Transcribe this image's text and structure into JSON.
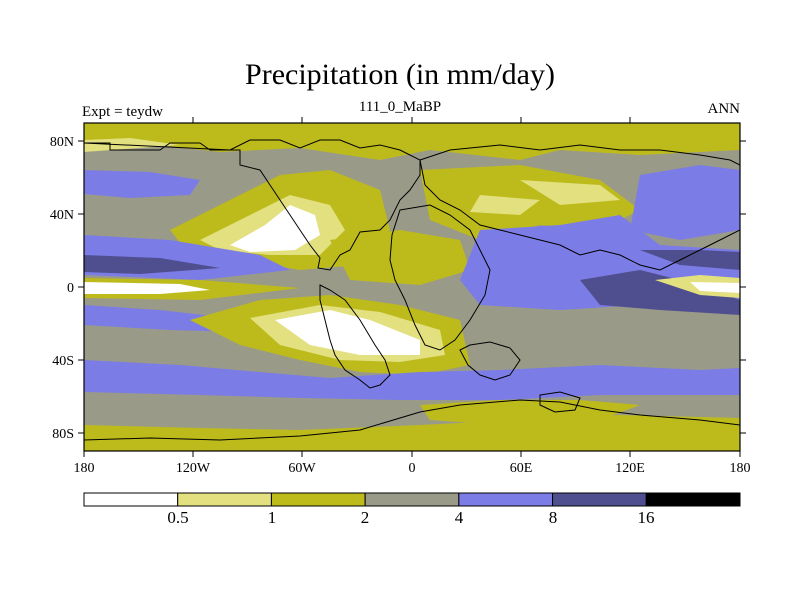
{
  "title": "Precipitation (in mm/day)",
  "left_label": "Expt = teydw",
  "center_label": "111_0_MaBP",
  "right_label": "ANN",
  "lat_labels": [
    "80N",
    "40N",
    "0",
    "40S",
    "80S"
  ],
  "lon_labels": [
    "180",
    "120W",
    "60W",
    "0",
    "60E",
    "120E",
    "180"
  ],
  "colorbar": {
    "levels": [
      "0.5",
      "1",
      "2",
      "4",
      "8",
      "16"
    ],
    "colors": [
      "#ffffff",
      "#e2e07f",
      "#bdbb1c",
      "#9a9a88",
      "#7c7ce6",
      "#4f4f8f",
      "#000000"
    ]
  },
  "palette": {
    "dry": "#ffffff",
    "light": "#e2e07f",
    "olive": "#bdbb1c",
    "grey": "#9a9a88",
    "blue": "#7c7ce6",
    "navy": "#4f4f8f"
  }
}
